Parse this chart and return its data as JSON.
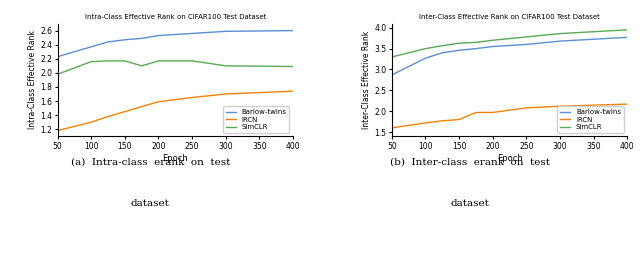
{
  "intra_epochs_barlow": [
    50,
    100,
    125,
    150,
    175,
    200,
    250,
    300,
    400
  ],
  "intra_barlow": [
    2.23,
    2.37,
    2.44,
    2.47,
    2.49,
    2.53,
    2.56,
    2.59,
    2.6
  ],
  "intra_epochs_ircn": [
    50,
    100,
    125,
    150,
    175,
    200,
    250,
    300,
    400
  ],
  "intra_ircn": [
    1.18,
    1.3,
    1.38,
    1.45,
    1.52,
    1.59,
    1.65,
    1.7,
    1.74
  ],
  "intra_epochs_simclr": [
    50,
    100,
    125,
    150,
    175,
    200,
    250,
    300,
    400
  ],
  "intra_simclr": [
    1.98,
    2.16,
    2.17,
    2.17,
    2.1,
    2.17,
    2.17,
    2.1,
    2.09
  ],
  "inter_epochs_barlow": [
    50,
    100,
    125,
    150,
    175,
    200,
    250,
    300,
    400
  ],
  "inter_barlow": [
    2.87,
    3.27,
    3.4,
    3.46,
    3.5,
    3.55,
    3.6,
    3.68,
    3.77
  ],
  "inter_epochs_ircn": [
    50,
    100,
    125,
    150,
    175,
    200,
    250,
    300,
    400
  ],
  "inter_ircn": [
    1.6,
    1.72,
    1.77,
    1.8,
    1.97,
    1.97,
    2.08,
    2.12,
    2.17
  ],
  "inter_epochs_simclr": [
    50,
    100,
    125,
    150,
    175,
    200,
    250,
    300,
    400
  ],
  "inter_simclr": [
    3.3,
    3.5,
    3.57,
    3.63,
    3.65,
    3.7,
    3.78,
    3.86,
    3.95
  ],
  "intra_title": "Intra-Class Effective Rank on CIFAR100 Test Dataset",
  "inter_title": "Inter-Class Effective Rank on CIFAR100 Test Dataset",
  "intra_ylabel": "Intra-Class Effective Rank",
  "inter_ylabel": "Inter-Class Effective Rank",
  "xlabel": "Epoch",
  "legend_barlow": "Barlow-twins",
  "legend_ircn": "IRCN",
  "legend_simclr": "SimCLR",
  "color_barlow": "#5b8fd4",
  "color_ircn": "#f0820a",
  "color_simclr": "#5aaa55",
  "xticks": [
    50,
    100,
    150,
    200,
    250,
    300,
    350,
    400
  ],
  "intra_ylim": [
    1.1,
    2.7
  ],
  "intra_yticks": [
    1.2,
    1.4,
    1.6,
    1.8,
    2.0,
    2.2,
    2.4,
    2.6
  ],
  "inter_ylim": [
    1.4,
    4.1
  ],
  "inter_yticks": [
    1.5,
    2.0,
    2.5,
    3.0,
    3.5,
    4.0
  ]
}
